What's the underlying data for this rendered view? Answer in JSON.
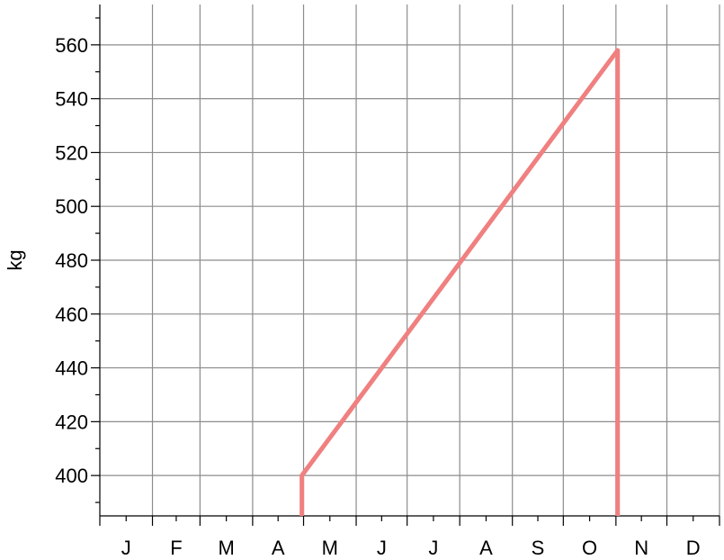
{
  "chart_data": {
    "type": "line",
    "title": "",
    "xlabel": "",
    "ylabel": "kg",
    "x_categories": [
      "J",
      "F",
      "M",
      "A",
      "M",
      "J",
      "J",
      "A",
      "S",
      "O",
      "N",
      "D"
    ],
    "x_unit": "month",
    "xlim": [
      1,
      366
    ],
    "ylim": [
      385,
      575
    ],
    "yticks": [
      400,
      420,
      440,
      460,
      480,
      500,
      520,
      540,
      560
    ],
    "grid": true,
    "legend": "none",
    "series": [
      {
        "color": "#f08080",
        "points": [
          {
            "x": 120,
            "y": 385
          },
          {
            "x": 120,
            "y": 400
          },
          {
            "x": 306,
            "y": 558
          },
          {
            "x": 306,
            "y": 385
          }
        ]
      }
    ]
  }
}
